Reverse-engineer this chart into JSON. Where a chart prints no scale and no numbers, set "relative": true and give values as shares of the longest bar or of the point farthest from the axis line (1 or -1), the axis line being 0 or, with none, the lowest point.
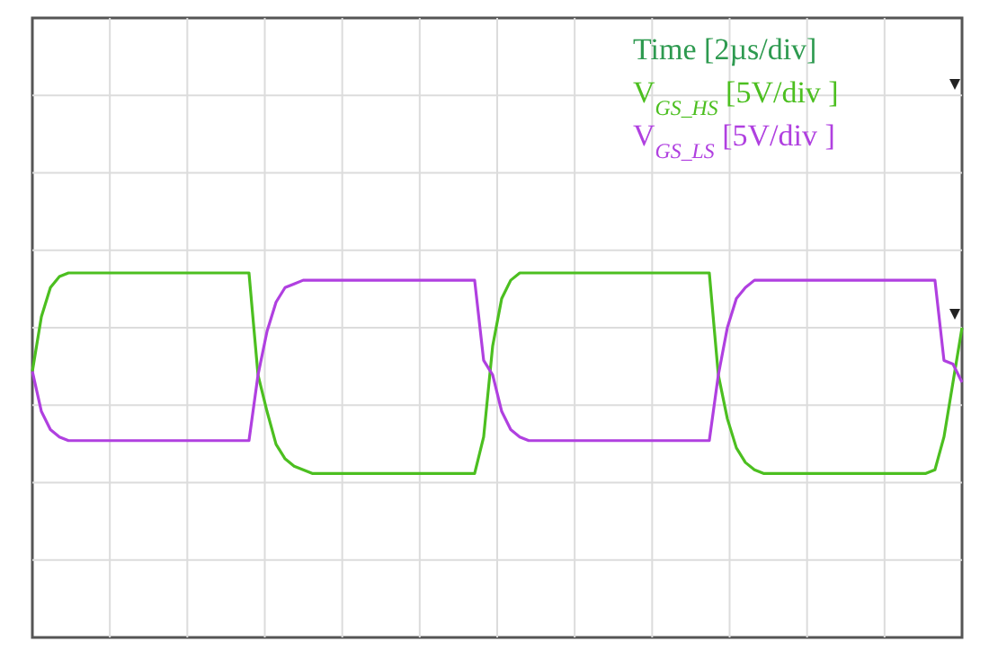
{
  "chart_data": {
    "type": "line",
    "relative": true,
    "grid": true,
    "legend": "top right",
    "marker": "none",
    "line_style": "solid",
    "categories": [
      null,
      null,
      null,
      null,
      null,
      null,
      null,
      null,
      null,
      null,
      null,
      null,
      null,
      null,
      null,
      null,
      null,
      null,
      null,
      null,
      null,
      null,
      null,
      null,
      null,
      null,
      null,
      null,
      null,
      null,
      null,
      null,
      null,
      null,
      null,
      null,
      null,
      null,
      null,
      null,
      null,
      null,
      null,
      null,
      null,
      null,
      null,
      null,
      null,
      null,
      null,
      null,
      null,
      null,
      null,
      null,
      null,
      null,
      null,
      null,
      null,
      null,
      null,
      null,
      null,
      null,
      null,
      null,
      null,
      null,
      null,
      null,
      null,
      null,
      null,
      null,
      null,
      null,
      null,
      null,
      null,
      null,
      null,
      null,
      null,
      null,
      null,
      null,
      null,
      null,
      null,
      null,
      null,
      null,
      null,
      null,
      null,
      null,
      null,
      null,
      null,
      null,
      null,
      null
    ],
    "annotations": [
      "Time [2µs/div]"
    ],
    "series": [
      {
        "name": "V$_{GS_HS}$ [5V/div ]",
        "color": "#4cbf20",
        "values": [
          0.73,
          0.88,
          0.96,
          0.99,
          1.0,
          1.0,
          1.0,
          1.0,
          1.0,
          1.0,
          1.0,
          1.0,
          1.0,
          1.0,
          1.0,
          1.0,
          1.0,
          1.0,
          1.0,
          1.0,
          1.0,
          1.0,
          1.0,
          1.0,
          1.0,
          0.72,
          0.62,
          0.53,
          0.49,
          0.47,
          0.46,
          0.45,
          0.45,
          0.45,
          0.45,
          0.45,
          0.45,
          0.45,
          0.45,
          0.45,
          0.45,
          0.45,
          0.45,
          0.45,
          0.45,
          0.45,
          0.45,
          0.45,
          0.45,
          0.45,
          0.55,
          0.8,
          0.93,
          0.98,
          1.0,
          1.0,
          1.0,
          1.0,
          1.0,
          1.0,
          1.0,
          1.0,
          1.0,
          1.0,
          1.0,
          1.0,
          1.0,
          1.0,
          1.0,
          1.0,
          1.0,
          1.0,
          1.0,
          1.0,
          1.0,
          1.0,
          0.72,
          0.6,
          0.52,
          0.48,
          0.46,
          0.45,
          0.45,
          0.45,
          0.45,
          0.45,
          0.45,
          0.45,
          0.45,
          0.45,
          0.45,
          0.45,
          0.45,
          0.45,
          0.45,
          0.45,
          0.45,
          0.45,
          0.45,
          0.45,
          0.46,
          0.55,
          0.7,
          0.85
        ]
      },
      {
        "name": "V$_{GS_LS}$ [5V/div ]",
        "color": "#b040e0",
        "values": [
          0.73,
          0.62,
          0.57,
          0.55,
          0.54,
          0.54,
          0.54,
          0.54,
          0.54,
          0.54,
          0.54,
          0.54,
          0.54,
          0.54,
          0.54,
          0.54,
          0.54,
          0.54,
          0.54,
          0.54,
          0.54,
          0.54,
          0.54,
          0.54,
          0.54,
          0.72,
          0.84,
          0.92,
          0.96,
          0.97,
          0.98,
          0.98,
          0.98,
          0.98,
          0.98,
          0.98,
          0.98,
          0.98,
          0.98,
          0.98,
          0.98,
          0.98,
          0.98,
          0.98,
          0.98,
          0.98,
          0.98,
          0.98,
          0.98,
          0.98,
          0.76,
          0.72,
          0.62,
          0.57,
          0.55,
          0.54,
          0.54,
          0.54,
          0.54,
          0.54,
          0.54,
          0.54,
          0.54,
          0.54,
          0.54,
          0.54,
          0.54,
          0.54,
          0.54,
          0.54,
          0.54,
          0.54,
          0.54,
          0.54,
          0.54,
          0.54,
          0.72,
          0.85,
          0.93,
          0.96,
          0.98,
          0.98,
          0.98,
          0.98,
          0.98,
          0.98,
          0.98,
          0.98,
          0.98,
          0.98,
          0.98,
          0.98,
          0.98,
          0.98,
          0.98,
          0.98,
          0.98,
          0.98,
          0.98,
          0.98,
          0.98,
          0.76,
          0.75,
          0.7
        ]
      }
    ]
  }
}
